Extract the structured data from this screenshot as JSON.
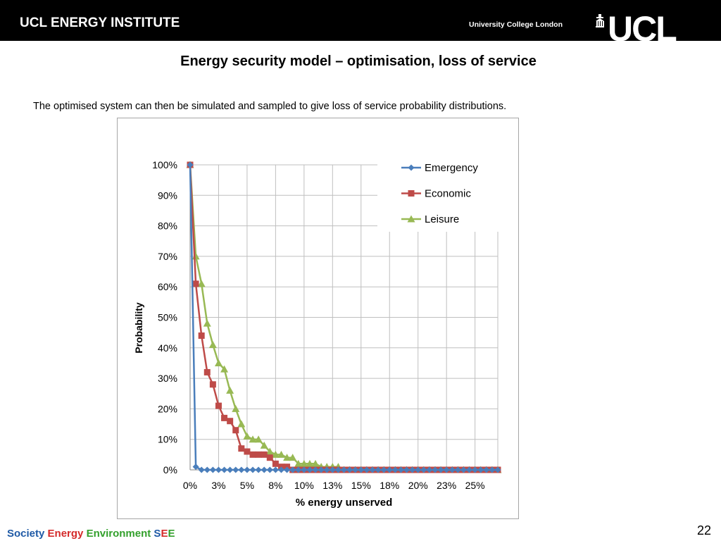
{
  "header": {
    "institute": "UCL ENERGY INSTITUTE",
    "university": "University College London",
    "logo_text": "UCL"
  },
  "slide": {
    "title": "Energy security model – optimisation, loss of service",
    "subtitle": "The optimised system can then be simulated and sampled to give loss of service probability distributions.",
    "page_number": "22"
  },
  "footer": {
    "society": "Society",
    "energy": "Energy",
    "environment": "Environment",
    "see_s": "S",
    "see_e1": "E",
    "see_e2": "E"
  },
  "colors": {
    "emergency": "#4a7ebb",
    "economic": "#be4b48",
    "leisure": "#98b954",
    "grid": "#bfbfbf"
  },
  "chart_data": {
    "type": "line",
    "xlabel": "% energy unserved",
    "ylabel": "Probability",
    "xlim": [
      0,
      27
    ],
    "ylim": [
      0,
      100
    ],
    "x_ticks": [
      "0%",
      "3%",
      "5%",
      "8%",
      "10%",
      "13%",
      "15%",
      "18%",
      "20%",
      "23%",
      "25%"
    ],
    "y_ticks": [
      "0%",
      "10%",
      "20%",
      "30%",
      "40%",
      "50%",
      "60%",
      "70%",
      "80%",
      "90%",
      "100%"
    ],
    "grid": true,
    "legend_position": "top-right",
    "x_step": 0.5,
    "series": [
      {
        "name": "Emergency",
        "marker": "diamond",
        "values": [
          100,
          1,
          0,
          0,
          0,
          0,
          0,
          0,
          0,
          0,
          0,
          0,
          0,
          0,
          0,
          0,
          0,
          0,
          0,
          0,
          0,
          0,
          0,
          0,
          0,
          0,
          0,
          0,
          0,
          0,
          0,
          0,
          0,
          0,
          0,
          0,
          0,
          0,
          0,
          0,
          0,
          0,
          0,
          0,
          0,
          0,
          0,
          0,
          0,
          0,
          0,
          0,
          0,
          0,
          0
        ]
      },
      {
        "name": "Economic",
        "marker": "square",
        "values": [
          100,
          61,
          44,
          32,
          28,
          21,
          17,
          16,
          13,
          7,
          6,
          5,
          5,
          5,
          4,
          2,
          1,
          1,
          0,
          0,
          0,
          0,
          0,
          0,
          0,
          0,
          0,
          0,
          0,
          0,
          0,
          0,
          0,
          0,
          0,
          0,
          0,
          0,
          0,
          0,
          0,
          0,
          0,
          0,
          0,
          0,
          0,
          0,
          0,
          0,
          0,
          0,
          0,
          0,
          0
        ]
      },
      {
        "name": "Leisure",
        "marker": "triangle",
        "values": [
          100,
          70,
          61,
          48,
          41,
          35,
          33,
          26,
          20,
          15,
          11,
          10,
          10,
          8,
          6,
          5,
          5,
          4,
          4,
          2,
          2,
          2,
          2,
          1,
          1,
          1,
          1,
          0,
          0,
          0,
          0,
          0,
          0,
          0,
          0,
          0,
          0,
          0,
          0,
          0,
          0,
          0,
          0,
          0,
          0,
          0,
          0,
          0,
          0,
          0,
          0,
          0,
          0,
          0,
          0
        ]
      }
    ]
  }
}
